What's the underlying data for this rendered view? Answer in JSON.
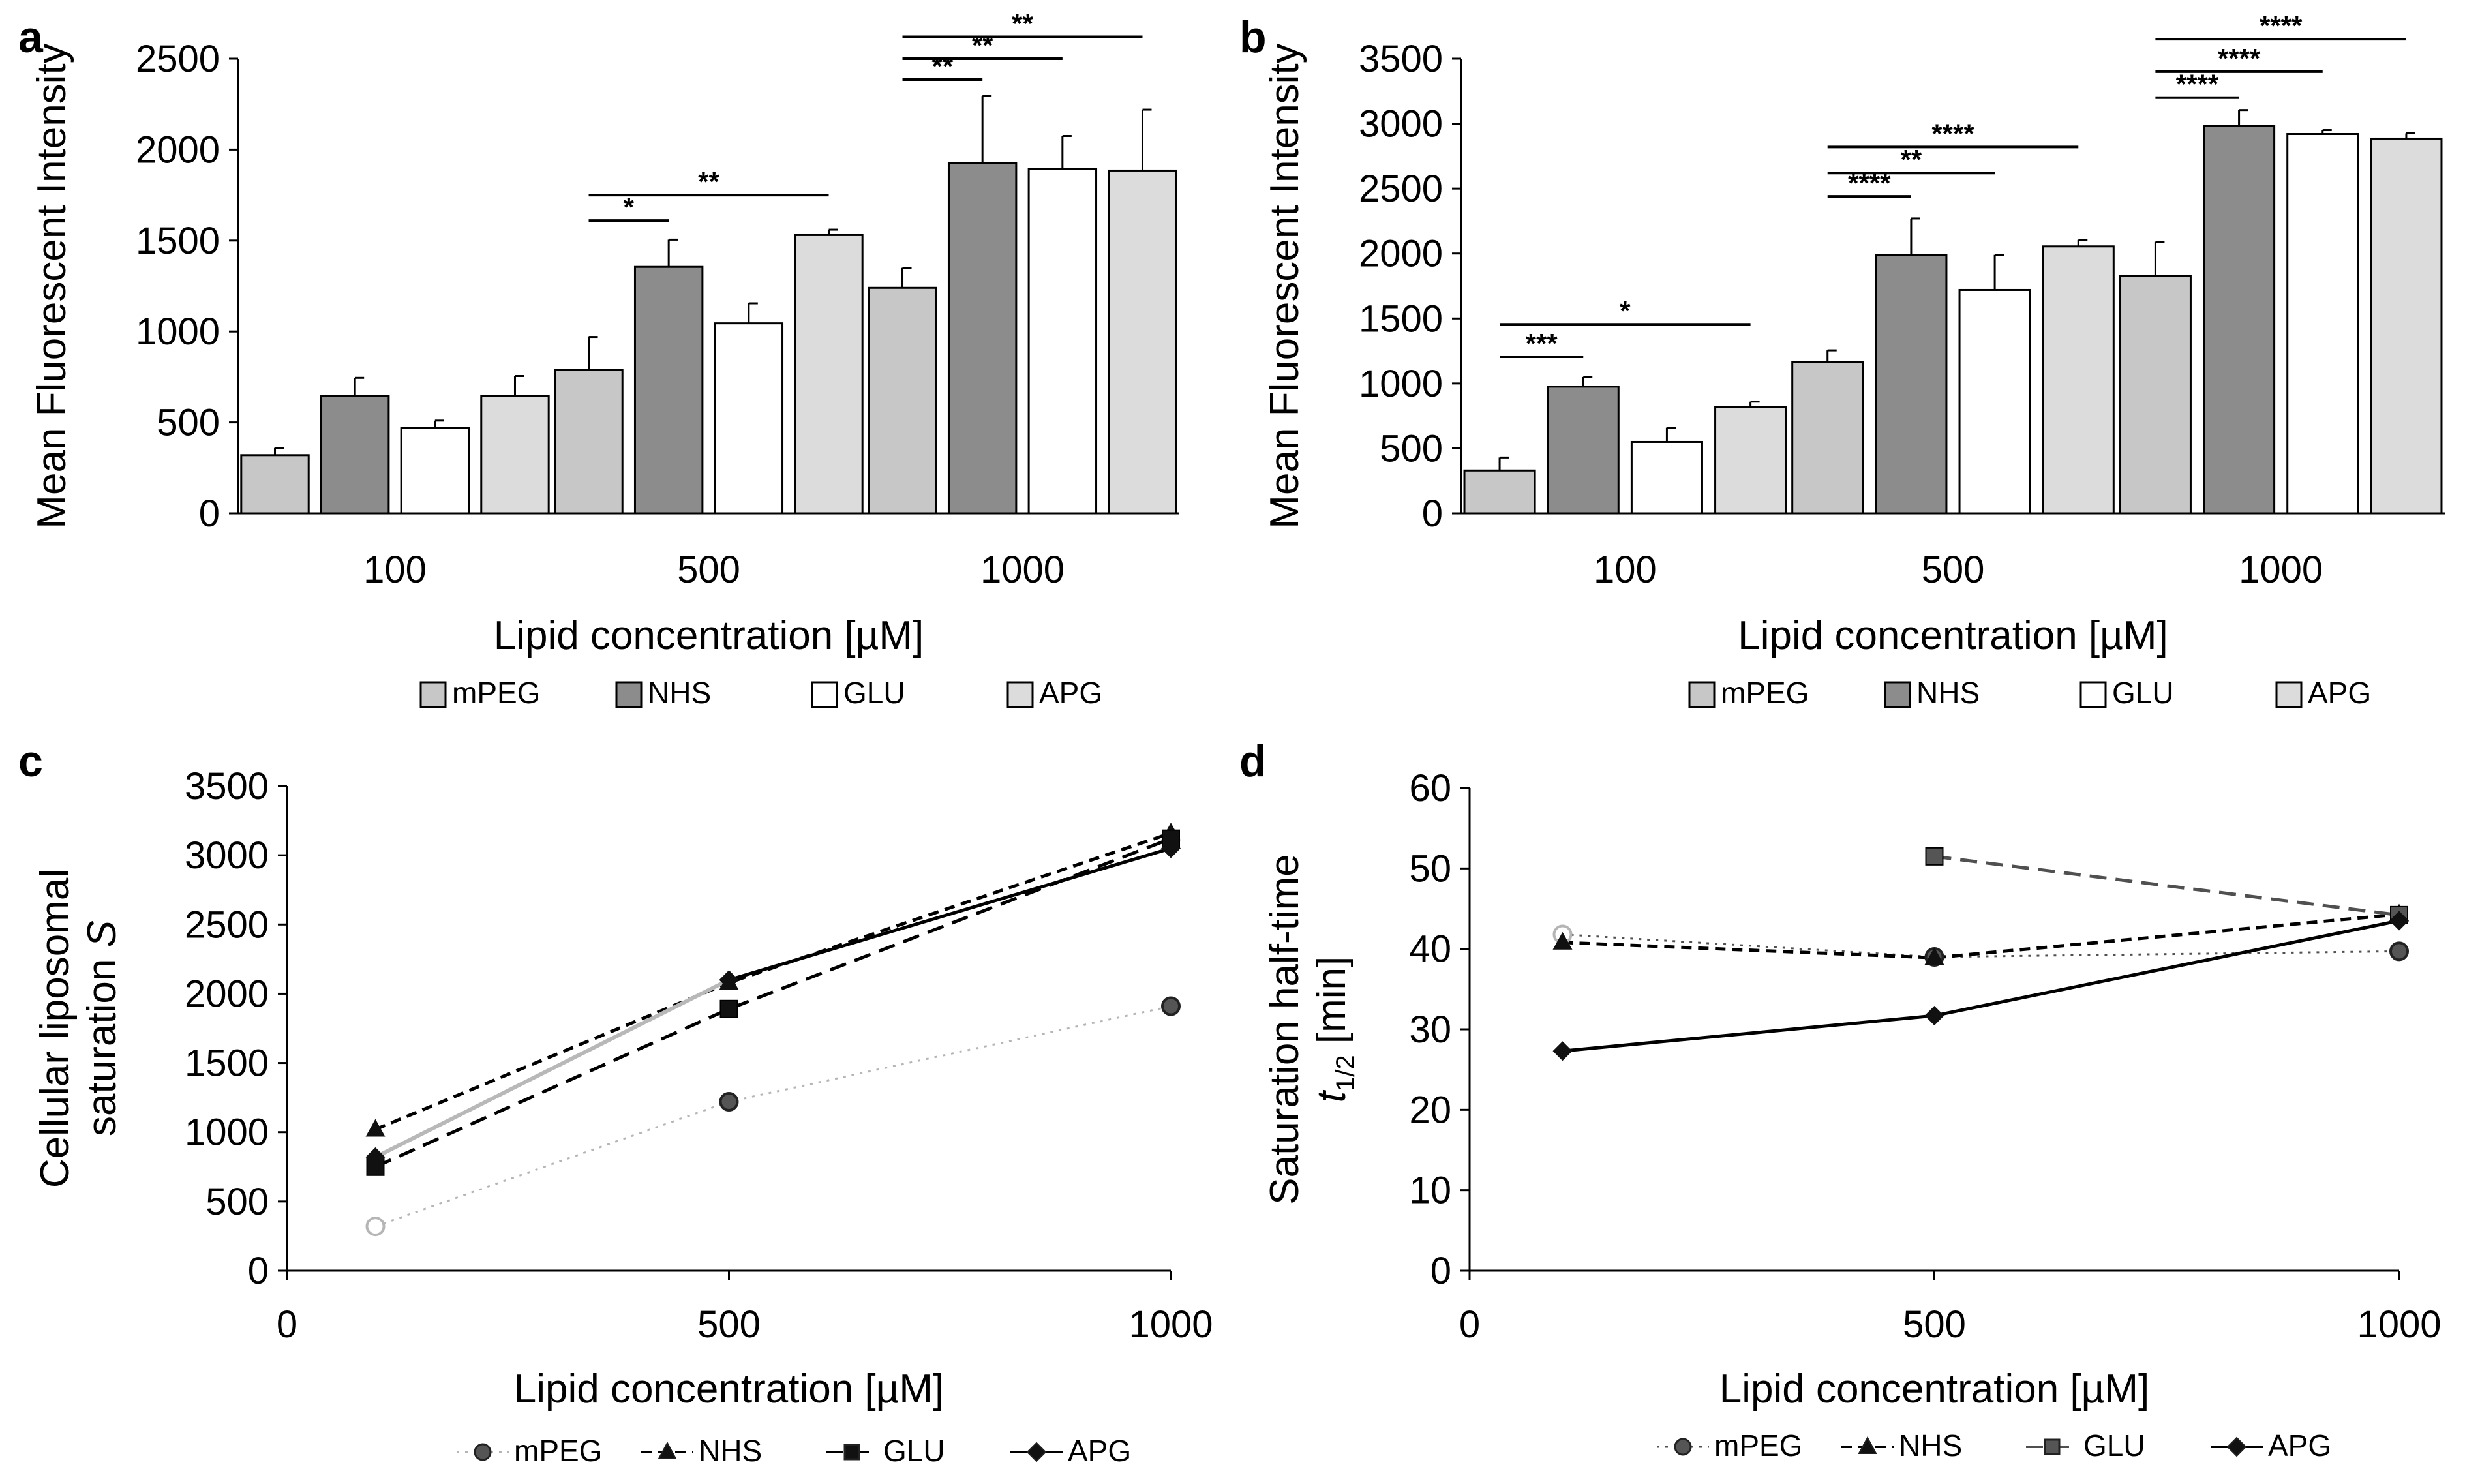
{
  "figure": {
    "panels": [
      "a",
      "b",
      "c",
      "d"
    ]
  },
  "chart_data": [
    {
      "id": "a",
      "type": "bar",
      "title": "",
      "xlabel": "Lipid concentration [µM]",
      "ylabel": "Mean Fluorescent Intensity",
      "ylim": [
        0,
        2500
      ],
      "yticks": [
        0,
        500,
        1000,
        1500,
        2000,
        2500
      ],
      "categories": [
        "100",
        "500",
        "1000"
      ],
      "series": [
        {
          "name": "mPEG",
          "color": "#c7c7c7",
          "values": [
            320,
            790,
            1240
          ],
          "errors": [
            40,
            180,
            110
          ]
        },
        {
          "name": "NHS",
          "color": "#8c8c8c",
          "values": [
            645,
            1355,
            1925
          ],
          "errors": [
            100,
            150,
            370
          ]
        },
        {
          "name": "GLU",
          "color": "#ffffff",
          "values": [
            470,
            1045,
            1895
          ],
          "errors": [
            40,
            110,
            180
          ]
        },
        {
          "name": "APG",
          "color": "#dcdcdc",
          "values": [
            645,
            1530,
            1885
          ],
          "errors": [
            110,
            30,
            335
          ]
        }
      ],
      "significance": [
        {
          "group": 1,
          "from": 0,
          "to": 1,
          "label": "*",
          "y": 1610
        },
        {
          "group": 1,
          "from": 0,
          "to": 3,
          "label": "**",
          "y": 1750
        },
        {
          "group": 2,
          "from": 0,
          "to": 1,
          "label": "**",
          "y": 2385
        },
        {
          "group": 2,
          "from": 0,
          "to": 2,
          "label": "**",
          "y": 2500
        },
        {
          "group": 2,
          "from": 0,
          "to": 3,
          "label": "**",
          "y": 2620
        }
      ]
    },
    {
      "id": "b",
      "type": "bar",
      "title": "",
      "xlabel": "Lipid concentration [µM]",
      "ylabel": "Mean Fluorescent Intensity",
      "ylim": [
        0,
        3500
      ],
      "yticks": [
        0,
        500,
        1000,
        1500,
        2000,
        2500,
        3000,
        3500
      ],
      "categories": [
        "100",
        "500",
        "1000"
      ],
      "series": [
        {
          "name": "mPEG",
          "color": "#c7c7c7",
          "values": [
            330,
            1165,
            1830
          ],
          "errors": [
            100,
            90,
            260
          ]
        },
        {
          "name": "NHS",
          "color": "#8c8c8c",
          "values": [
            975,
            1990,
            2985
          ],
          "errors": [
            75,
            280,
            120
          ]
        },
        {
          "name": "GLU",
          "color": "#ffffff",
          "values": [
            550,
            1720,
            2920
          ],
          "errors": [
            110,
            270,
            30
          ]
        },
        {
          "name": "APG",
          "color": "#dcdcdc",
          "values": [
            820,
            2055,
            2885
          ],
          "errors": [
            40,
            50,
            40
          ]
        }
      ],
      "significance": [
        {
          "group": 0,
          "from": 0,
          "to": 1,
          "label": "***",
          "y": 1205
        },
        {
          "group": 0,
          "from": 0,
          "to": 3,
          "label": "*",
          "y": 1455
        },
        {
          "group": 1,
          "from": 0,
          "to": 1,
          "label": "****",
          "y": 2440
        },
        {
          "group": 1,
          "from": 0,
          "to": 2,
          "label": "**",
          "y": 2620
        },
        {
          "group": 1,
          "from": 0,
          "to": 3,
          "label": "****",
          "y": 2820
        },
        {
          "group": 2,
          "from": 0,
          "to": 1,
          "label": "****",
          "y": 3200
        },
        {
          "group": 2,
          "from": 0,
          "to": 2,
          "label": "****",
          "y": 3400
        },
        {
          "group": 2,
          "from": 0,
          "to": 3,
          "label": "****",
          "y": 3650
        }
      ]
    },
    {
      "id": "c",
      "type": "line",
      "title": "",
      "xlabel": "Lipid concentration [µM]",
      "ylabel": [
        "Cellular liposomal",
        "saturation "
      ],
      "ylabel_italic": "S",
      "xlim": [
        0,
        1000
      ],
      "xticks": [
        0,
        500,
        1000
      ],
      "ylim": [
        0,
        3500
      ],
      "yticks": [
        0,
        500,
        1000,
        1500,
        2000,
        2500,
        3000,
        3500
      ],
      "series": [
        {
          "name": "mPEG",
          "x": [
            100,
            500,
            1000
          ],
          "y": [
            320,
            1220,
            1910
          ],
          "color": "#b5b5b5",
          "marker": "circle",
          "dash": "dot"
        },
        {
          "name": "NHS",
          "x": [
            100,
            500,
            1000
          ],
          "y": [
            1020,
            2080,
            3160
          ],
          "color": "#000000",
          "marker": "triangle",
          "dash": "dash-short"
        },
        {
          "name": "GLU",
          "x": [
            100,
            500,
            1000
          ],
          "y": [
            750,
            1890,
            3120
          ],
          "color": "#000000",
          "marker": "square",
          "dash": "dash"
        },
        {
          "name": "APG",
          "x": [
            100,
            500,
            1000
          ],
          "y": [
            820,
            2100,
            3050
          ],
          "color": "#000000",
          "marker": "diamond",
          "dash": "solid"
        }
      ]
    },
    {
      "id": "d",
      "type": "line",
      "title": "",
      "xlabel": "Lipid concentration [µM]",
      "ylabel": [
        "Saturation half-time"
      ],
      "ylabel_italic": "t",
      "ylabel_sub": "1/2",
      "ylabel_unit": " [min]",
      "xlim": [
        0,
        1000
      ],
      "xticks": [
        0,
        500,
        1000
      ],
      "ylim": [
        0,
        60
      ],
      "yticks": [
        0,
        10,
        20,
        30,
        40,
        50,
        60
      ],
      "series": [
        {
          "name": "mPEG",
          "x": [
            100,
            500,
            1000
          ],
          "y": [
            41.8,
            39.0,
            39.7
          ],
          "color": "#505050",
          "marker": "circle",
          "dash": "dot"
        },
        {
          "name": "NHS",
          "x": [
            100,
            500,
            1000
          ],
          "y": [
            40.8,
            38.9,
            44.3
          ],
          "color": "#000000",
          "marker": "triangle",
          "dash": "dash-short"
        },
        {
          "name": "GLU",
          "x": [
            500,
            1000
          ],
          "y": [
            51.5,
            44.2
          ],
          "color": "#505050",
          "marker": "square",
          "dash": "dash"
        },
        {
          "name": "APG",
          "x": [
            100,
            500,
            1000
          ],
          "y": [
            27.3,
            31.7,
            43.5
          ],
          "color": "#000000",
          "marker": "diamond",
          "dash": "solid"
        }
      ]
    }
  ]
}
